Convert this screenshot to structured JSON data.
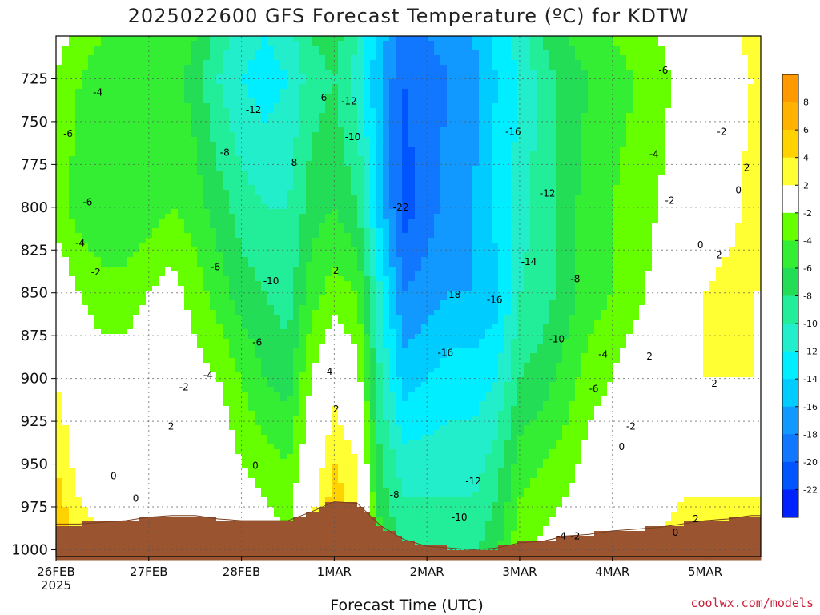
{
  "chart_data": {
    "type": "heatmap",
    "title": "2025022600 GFS Forecast Temperature (ºC) for KDTW",
    "xlabel": "Forecast Time (UTC)",
    "ylabel": "",
    "credit": "coolwx.com/models",
    "x_ticks": [
      {
        "day": 0,
        "label": "26FEB",
        "sublabel": "2025"
      },
      {
        "day": 1,
        "label": "27FEB",
        "sublabel": ""
      },
      {
        "day": 2,
        "label": "28FEB",
        "sublabel": ""
      },
      {
        "day": 3,
        "label": "1MAR",
        "sublabel": ""
      },
      {
        "day": 4,
        "label": "2MAR",
        "sublabel": ""
      },
      {
        "day": 5,
        "label": "3MAR",
        "sublabel": ""
      },
      {
        "day": 6,
        "label": "4MAR",
        "sublabel": ""
      },
      {
        "day": 7,
        "label": "5MAR",
        "sublabel": ""
      }
    ],
    "y_ticks": [
      725,
      750,
      775,
      800,
      825,
      850,
      875,
      900,
      925,
      950,
      975,
      1000
    ],
    "xlim_days": [
      0,
      7.6
    ],
    "ylim_hpa": [
      700,
      1004
    ],
    "grid": true,
    "colorbar": {
      "levels": [
        10,
        8,
        6,
        4,
        2,
        -2,
        -4,
        -6,
        -8,
        -10,
        -12,
        -14,
        -16,
        -18,
        -20,
        -22,
        -24
      ],
      "labels": [
        "8",
        "6",
        "4",
        "2",
        "-2",
        "-4",
        "-6",
        "-8",
        "-10",
        "-12",
        "-14",
        "-16",
        "-18",
        "-20",
        "-22"
      ],
      "colors": [
        "#ff9900",
        "#ffb300",
        "#ffd200",
        "#ffff33",
        "#ffffff",
        "#66ff00",
        "#33ee33",
        "#22dd55",
        "#22ee99",
        "#22eecc",
        "#00eeff",
        "#00ccff",
        "#1199ff",
        "#1177ff",
        "#0055ff",
        "#0022ff"
      ]
    },
    "ground_color": "#9a5530",
    "freezing_line_color": "#c8206e",
    "columns": [
      {
        "day": 0.0,
        "t725": -2,
        "t800": -3,
        "t850": 0,
        "t900": 2,
        "t950": 4,
        "sfc": 985
      },
      {
        "day": 0.25,
        "t725": -4,
        "t800": -5,
        "t850": -2,
        "t900": 0,
        "t950": 1,
        "sfc": 985
      },
      {
        "day": 0.5,
        "t725": -5,
        "t800": -6,
        "t850": -3,
        "t900": -1,
        "t950": 0,
        "sfc": 984
      },
      {
        "day": 0.75,
        "t725": -5,
        "t800": -6,
        "t850": -3,
        "t900": -1,
        "t950": 0,
        "sfc": 983
      },
      {
        "day": 1.0,
        "t725": -6,
        "t800": -5,
        "t850": -2,
        "t900": 0,
        "t950": 0,
        "sfc": 981
      },
      {
        "day": 1.25,
        "t725": -5,
        "t800": -4,
        "t850": -1,
        "t900": 0,
        "t950": 0,
        "sfc": 980
      },
      {
        "day": 1.5,
        "t725": -7,
        "t800": -5,
        "t850": -3,
        "t900": -1,
        "t950": 0,
        "sfc": 980
      },
      {
        "day": 1.75,
        "t725": -10,
        "t800": -7,
        "t850": -5,
        "t900": -2,
        "t950": 0,
        "sfc": 982
      },
      {
        "day": 2.0,
        "t725": -12,
        "t800": -9,
        "t850": -7,
        "t900": -4,
        "t950": -2,
        "sfc": 983
      },
      {
        "day": 2.25,
        "t725": -13,
        "t800": -10,
        "t850": -8,
        "t900": -6,
        "t950": -3,
        "sfc": 983
      },
      {
        "day": 2.5,
        "t725": -12,
        "t800": -10,
        "t850": -9,
        "t900": -7,
        "t950": -4,
        "sfc": 983
      },
      {
        "day": 2.75,
        "t725": -9,
        "t800": -7,
        "t850": -5,
        "t900": -2,
        "t950": 0,
        "sfc": 978
      },
      {
        "day": 3.0,
        "t725": -8,
        "t800": -6,
        "t850": -3,
        "t900": 1,
        "t950": 4,
        "sfc": 972
      },
      {
        "day": 3.25,
        "t725": -11,
        "t800": -8,
        "t850": -4,
        "t900": -1,
        "t950": 2,
        "sfc": 973
      },
      {
        "day": 3.5,
        "t725": -16,
        "t800": -15,
        "t850": -12,
        "t900": -10,
        "t950": -8,
        "sfc": 986
      },
      {
        "day": 3.75,
        "t725": -20,
        "t800": -21,
        "t850": -18,
        "t900": -15,
        "t950": -11,
        "sfc": 994
      },
      {
        "day": 4.0,
        "t725": -19,
        "t800": -19,
        "t850": -17,
        "t900": -14,
        "t950": -11,
        "sfc": 998
      },
      {
        "day": 4.25,
        "t725": -18,
        "t800": -17,
        "t850": -16,
        "t900": -13,
        "t950": -11,
        "sfc": 999
      },
      {
        "day": 4.5,
        "t725": -17,
        "t800": -16,
        "t850": -16,
        "t900": -13,
        "t950": -11,
        "sfc": 1000
      },
      {
        "day": 4.75,
        "t725": -14,
        "t800": -13,
        "t850": -15,
        "t900": -12,
        "t950": -9,
        "sfc": 999
      },
      {
        "day": 5.0,
        "t725": -12,
        "t800": -11,
        "t850": -10,
        "t900": -8,
        "t950": -5,
        "sfc": 996
      },
      {
        "day": 5.25,
        "t725": -9,
        "t800": -9,
        "t850": -9,
        "t900": -7,
        "t950": -4,
        "sfc": 995
      },
      {
        "day": 5.5,
        "t725": -7,
        "t800": -7,
        "t850": -7,
        "t900": -5,
        "t950": -3,
        "sfc": 992
      },
      {
        "day": 5.75,
        "t725": -6,
        "t800": -5,
        "t850": -5,
        "t900": -3,
        "t950": -1,
        "sfc": 991
      },
      {
        "day": 6.0,
        "t725": -5,
        "t800": -4,
        "t850": -4,
        "t900": -2,
        "t950": 0,
        "sfc": 989
      },
      {
        "day": 6.25,
        "t725": -4,
        "t800": -3,
        "t850": -3,
        "t900": 0,
        "t950": 0,
        "sfc": 988
      },
      {
        "day": 6.5,
        "t725": -3,
        "t800": -2,
        "t850": -1,
        "t900": 1,
        "t950": 0,
        "sfc": 987
      },
      {
        "day": 6.75,
        "t725": -1,
        "t800": 0,
        "t850": 0,
        "t900": 1,
        "t950": 1,
        "sfc": 985
      },
      {
        "day": 7.0,
        "t725": -2,
        "t800": 0,
        "t850": 2,
        "t900": 2,
        "t950": 1,
        "sfc": 983
      },
      {
        "day": 7.25,
        "t725": 0,
        "t800": 1,
        "t850": 3,
        "t900": 2,
        "t950": 1,
        "sfc": 982
      },
      {
        "day": 7.5,
        "t725": 2,
        "t800": 3,
        "t850": 2,
        "t900": 2,
        "t950": 1,
        "sfc": 980
      }
    ],
    "contour_labels": [
      {
        "day": 0.13,
        "p": 757,
        "text": "-6"
      },
      {
        "day": 0.45,
        "p": 733,
        "text": "-4"
      },
      {
        "day": 0.34,
        "p": 797,
        "text": "-6"
      },
      {
        "day": 0.26,
        "p": 821,
        "text": "-4"
      },
      {
        "day": 0.43,
        "p": 838,
        "text": "-2"
      },
      {
        "day": 0.62,
        "p": 957,
        "text": "0"
      },
      {
        "day": 0.86,
        "p": 970,
        "text": "0"
      },
      {
        "day": 1.24,
        "p": 928,
        "text": "2"
      },
      {
        "day": 1.82,
        "p": 768,
        "text": "-8"
      },
      {
        "day": 2.13,
        "p": 743,
        "text": "-12"
      },
      {
        "day": 1.72,
        "p": 835,
        "text": "-6"
      },
      {
        "day": 1.64,
        "p": 898,
        "text": "-4"
      },
      {
        "day": 1.38,
        "p": 905,
        "text": "-2"
      },
      {
        "day": 2.15,
        "p": 951,
        "text": "0"
      },
      {
        "day": 2.17,
        "p": 879,
        "text": "-6"
      },
      {
        "day": 2.32,
        "p": 843,
        "text": "-10"
      },
      {
        "day": 2.55,
        "p": 774,
        "text": "-8"
      },
      {
        "day": 2.87,
        "p": 736,
        "text": "-6"
      },
      {
        "day": 3.16,
        "p": 738,
        "text": "-12"
      },
      {
        "day": 3.2,
        "p": 759,
        "text": "-10"
      },
      {
        "day": 3.0,
        "p": 837,
        "text": "-2"
      },
      {
        "day": 2.95,
        "p": 896,
        "text": "4"
      },
      {
        "day": 3.02,
        "p": 918,
        "text": "2"
      },
      {
        "day": 3.72,
        "p": 800,
        "text": "-22"
      },
      {
        "day": 3.65,
        "p": 968,
        "text": "-8"
      },
      {
        "day": 4.28,
        "p": 851,
        "text": "-18"
      },
      {
        "day": 4.2,
        "p": 885,
        "text": "-16"
      },
      {
        "day": 4.93,
        "p": 756,
        "text": "-16"
      },
      {
        "day": 4.73,
        "p": 854,
        "text": "-16"
      },
      {
        "day": 4.5,
        "p": 960,
        "text": "-12"
      },
      {
        "day": 4.35,
        "p": 981,
        "text": "-10"
      },
      {
        "day": 5.3,
        "p": 792,
        "text": "-12"
      },
      {
        "day": 5.1,
        "p": 832,
        "text": "-14"
      },
      {
        "day": 5.4,
        "p": 877,
        "text": "-10"
      },
      {
        "day": 5.6,
        "p": 842,
        "text": "-8"
      },
      {
        "day": 5.8,
        "p": 906,
        "text": "-6"
      },
      {
        "day": 5.9,
        "p": 886,
        "text": "-4"
      },
      {
        "day": 6.2,
        "p": 928,
        "text": "-2"
      },
      {
        "day": 5.45,
        "p": 992,
        "text": "-4"
      },
      {
        "day": 5.6,
        "p": 992,
        "text": "-2"
      },
      {
        "day": 6.1,
        "p": 940,
        "text": "0"
      },
      {
        "day": 6.4,
        "p": 887,
        "text": "2"
      },
      {
        "day": 6.55,
        "p": 720,
        "text": "-6"
      },
      {
        "day": 6.45,
        "p": 769,
        "text": "-4"
      },
      {
        "day": 6.62,
        "p": 796,
        "text": "-2"
      },
      {
        "day": 6.95,
        "p": 822,
        "text": "0"
      },
      {
        "day": 7.15,
        "p": 828,
        "text": "2"
      },
      {
        "day": 7.1,
        "p": 903,
        "text": "2"
      },
      {
        "day": 7.18,
        "p": 756,
        "text": "-2"
      },
      {
        "day": 7.36,
        "p": 790,
        "text": "0"
      },
      {
        "day": 7.45,
        "p": 777,
        "text": "2"
      },
      {
        "day": 6.68,
        "p": 990,
        "text": "0"
      },
      {
        "day": 6.9,
        "p": 982,
        "text": "2"
      }
    ]
  }
}
